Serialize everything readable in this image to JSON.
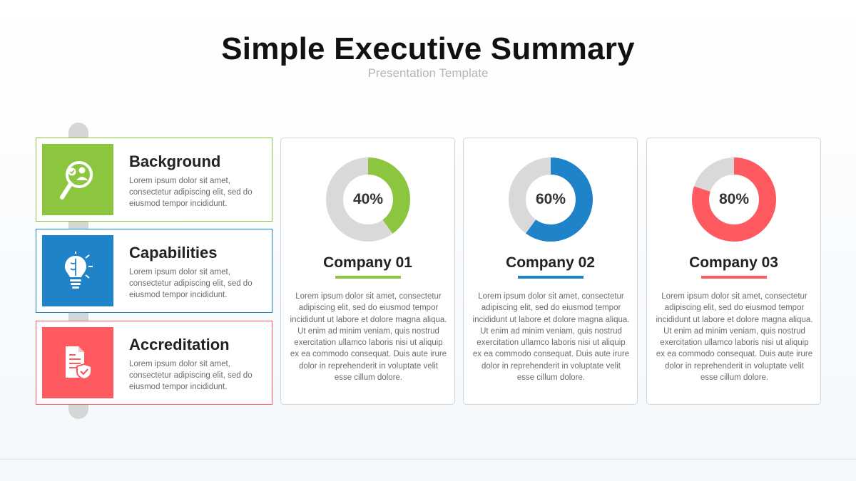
{
  "header": {
    "title": "Simple Executive Summary",
    "subtitle": "Presentation Template"
  },
  "categories": [
    {
      "title": "Background",
      "description": "Lorem ipsum dolor sit amet, consectetur adipiscing elit, sed do eiusmod tempor incididunt.",
      "icon": "magnifier-person-icon",
      "color": "#8cc63f"
    },
    {
      "title": "Capabilities",
      "description": "Lorem ipsum dolor sit amet, consectetur adipiscing elit, sed do eiusmod tempor incididunt.",
      "icon": "lightbulb-brain-icon",
      "color": "#1e83c9"
    },
    {
      "title": "Accreditation",
      "description": "Lorem ipsum dolor sit amet, consectetur adipiscing elit, sed do eiusmod tempor incididunt.",
      "icon": "document-shield-icon",
      "color": "#ff5a60"
    }
  ],
  "companies": [
    {
      "name": "Company 01",
      "percent": 40,
      "percent_label": "40%",
      "color": "#8cc63f",
      "description": "Lorem ipsum dolor sit amet, consectetur adipiscing elit, sed do eiusmod tempor incididunt ut labore et dolore magna aliqua. Ut enim ad minim veniam, quis nostrud exercitation ullamco laboris nisi ut aliquip ex ea commodo consequat. Duis aute irure dolor in reprehenderit in voluptate velit esse cillum dolore."
    },
    {
      "name": "Company 02",
      "percent": 60,
      "percent_label": "60%",
      "color": "#1e83c9",
      "description": "Lorem ipsum dolor sit amet, consectetur adipiscing elit, sed do eiusmod tempor incididunt ut labore et dolore magna aliqua. Ut enim ad minim veniam, quis nostrud exercitation ullamco laboris nisi ut aliquip ex ea commodo consequat. Duis aute irure dolor in reprehenderit in voluptate velit esse cillum dolore."
    },
    {
      "name": "Company 03",
      "percent": 80,
      "percent_label": "80%",
      "color": "#ff5a60",
      "description": "Lorem ipsum dolor sit amet, consectetur adipiscing elit, sed do eiusmod tempor incididunt ut labore et dolore magna aliqua. Ut enim ad minim veniam, quis nostrud exercitation ullamco laboris nisi ut aliquip ex ea commodo consequat. Duis aute irure dolor in reprehenderit in voluptate velit esse cillum dolore."
    }
  ],
  "theme": {
    "donut_track_color": "#d9d9d9"
  }
}
